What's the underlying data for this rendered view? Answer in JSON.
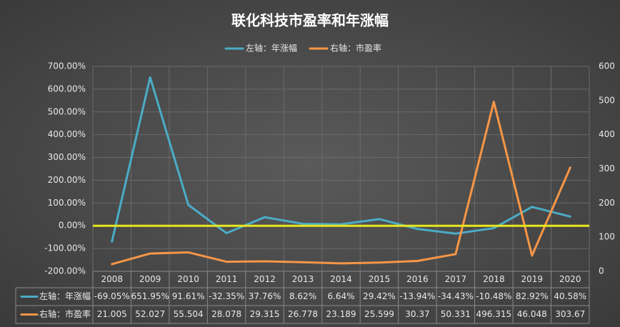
{
  "chart_data": {
    "type": "line",
    "title": "联化科技市盈率和年涨幅",
    "categories": [
      "2008",
      "2009",
      "2010",
      "2011",
      "2012",
      "2013",
      "2014",
      "2015",
      "2016",
      "2017",
      "2018",
      "2019",
      "2020"
    ],
    "series": [
      {
        "name": "左轴：年涨幅",
        "color": "#4bacc6",
        "axis": "y",
        "values": [
          -69.05,
          651.95,
          91.61,
          -32.35,
          37.76,
          8.62,
          6.64,
          29.42,
          -13.94,
          -34.43,
          -10.48,
          82.92,
          40.58
        ],
        "value_labels": [
          "-69.05%",
          "651.95%",
          "91.61%",
          "-32.35%",
          "37.76%",
          "8.62%",
          "6.64%",
          "29.42%",
          "-13.94%",
          "-34.43%",
          "-10.48%",
          "82.92%",
          "40.58%"
        ]
      },
      {
        "name": "右轴：市盈率",
        "color": "#f79646",
        "axis": "y2",
        "values": [
          21.005,
          52.027,
          55.504,
          28.078,
          29.315,
          26.778,
          23.189,
          25.599,
          30.37,
          50.331,
          496.315,
          46.048,
          303.67
        ]
      }
    ],
    "ylim": [
      -200,
      700
    ],
    "yticks": [
      {
        "value": -200,
        "label": "-200.00%"
      },
      {
        "value": -100,
        "label": "-100.00%"
      },
      {
        "value": 0,
        "label": "0.00%"
      },
      {
        "value": 100,
        "label": "100.00%"
      },
      {
        "value": 200,
        "label": "200.00%"
      },
      {
        "value": 300,
        "label": "300.00%"
      },
      {
        "value": 400,
        "label": "400.00%"
      },
      {
        "value": 500,
        "label": "500.00%"
      },
      {
        "value": 600,
        "label": "600.00%"
      },
      {
        "value": 700,
        "label": "700.00%"
      }
    ],
    "y2lim": [
      0,
      600
    ],
    "y2ticks": [
      0,
      100,
      200,
      300,
      400,
      500,
      600
    ],
    "grid": true,
    "zero_line_color": "#e6e61e",
    "legend": "top",
    "data_table": true
  }
}
